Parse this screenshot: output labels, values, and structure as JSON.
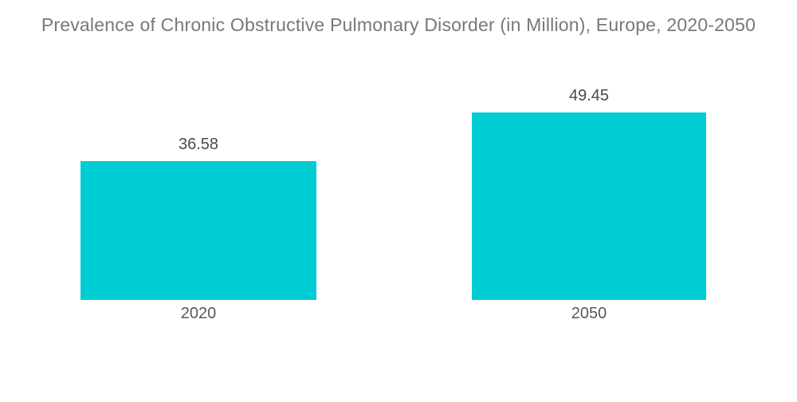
{
  "title": "Prevalence of Chronic Obstructive Pulmonary Disorder (in Million), Europe, 2020-2050",
  "chart_data": {
    "type": "bar",
    "title": "Prevalence of Chronic Obstructive Pulmonary Disorder (in Million), Europe, 2020-2050",
    "categories": [
      "2020",
      "2050"
    ],
    "values": [
      36.58,
      49.45
    ],
    "value_labels": [
      "36.58",
      "49.45"
    ],
    "xlabel": "",
    "ylabel": "",
    "ylim": [
      0,
      55
    ],
    "grid": false,
    "legend": false,
    "bar_color": "#00cdd3",
    "background_color": "#ffffff",
    "title_color": "#77787b",
    "value_label_color": "#4a4a4a",
    "category_label_color": "#58595b"
  }
}
